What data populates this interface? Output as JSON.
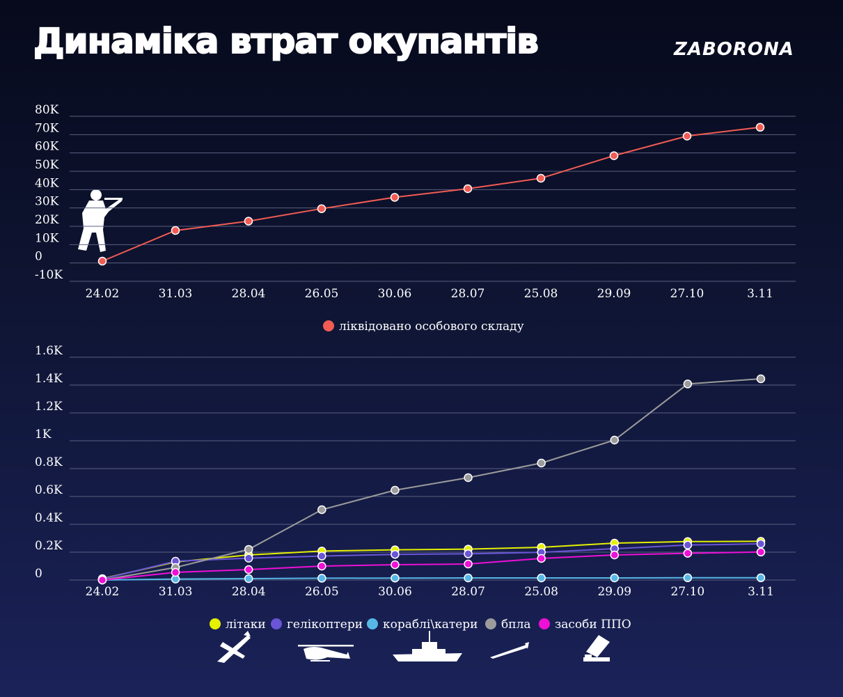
{
  "header": {
    "title": "Динаміка втрат окупантів",
    "brand": "ZABORONA"
  },
  "colors": {
    "personnel": "#f25c54",
    "planes": "#e6f000",
    "helicopters": "#6a55d6",
    "ships": "#57b8e6",
    "uav": "#9c9c9c",
    "air_defense": "#ee10d6",
    "grid": "#5a6080"
  },
  "icons": {
    "personnel": "soldier-icon",
    "planes": "plane-icon",
    "helicopters": "helicopter-icon",
    "ships": "warship-icon",
    "uav": "drone-icon",
    "air_defense": "air-defense-icon"
  },
  "chart_data": [
    {
      "type": "line",
      "categories": [
        "24.02",
        "31.03",
        "28.04",
        "26.05",
        "30.06",
        "28.07",
        "25.08",
        "29.09",
        "27.10",
        "3.11"
      ],
      "yticks": [
        "80K",
        "70K",
        "60K",
        "50K",
        "40K",
        "30K",
        "20K",
        "10K",
        "0",
        "-10K"
      ],
      "ylim": [
        -10000,
        80000
      ],
      "grid": true,
      "legend_position": "bottom",
      "series": [
        {
          "name": "ліквідовано особового складу",
          "key": "personnel",
          "values": [
            1000,
            17700,
            22800,
            29600,
            35800,
            40500,
            46200,
            58500,
            69200,
            74000
          ]
        }
      ]
    },
    {
      "type": "line",
      "categories": [
        "24.02",
        "31.03",
        "28.04",
        "26.05",
        "30.06",
        "28.07",
        "25.08",
        "29.09",
        "27.10",
        "3.11"
      ],
      "yticks": [
        "1.6K",
        "1.4K",
        "1.2K",
        "1K",
        "0.8K",
        "0.6K",
        "0.4K",
        "0.2K",
        "0"
      ],
      "ylim": [
        0,
        1600
      ],
      "grid": true,
      "legend_position": "bottom",
      "series": [
        {
          "name": "літаки",
          "key": "planes",
          "values": [
            10,
            130,
            180,
            208,
            217,
            222,
            235,
            265,
            276,
            278
          ]
        },
        {
          "name": "гелікоптери",
          "key": "helicopters",
          "values": [
            7,
            135,
            157,
            172,
            184,
            188,
            199,
            225,
            251,
            260
          ]
        },
        {
          "name": "кораблі\\катери",
          "key": "ships",
          "values": [
            0,
            7,
            10,
            13,
            14,
            15,
            15,
            15,
            16,
            16
          ]
        },
        {
          "name": "бпла",
          "key": "uav",
          "values": [
            0,
            90,
            220,
            505,
            645,
            735,
            840,
            1005,
            1408,
            1445
          ]
        },
        {
          "name": "засоби ППО",
          "key": "air_defense",
          "values": [
            0,
            55,
            75,
            100,
            110,
            115,
            155,
            180,
            192,
            201
          ]
        }
      ]
    }
  ]
}
